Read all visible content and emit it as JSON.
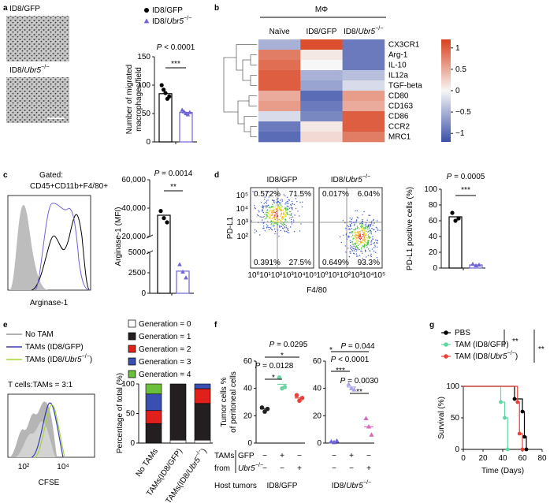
{
  "panel_labels": [
    "a",
    "b",
    "c",
    "d",
    "e",
    "f",
    "g"
  ],
  "images": {
    "labels": [
      "ID8/GFP",
      "ID8/Ubr5−/−"
    ]
  },
  "flow_c": {
    "gate_title": "Gated:",
    "gate": "CD45+CD11b+F4/80+",
    "x_label": "Arginase-1"
  },
  "flow_d": {
    "titles": [
      "ID8/GFP",
      "ID8/Ubr5−/−"
    ],
    "quadrants": [
      [
        "0.572%",
        "71.5%",
        "0.391%",
        "27.5%"
      ],
      [
        "0.017%",
        "6.04%",
        "0.649%",
        "93.3%"
      ]
    ],
    "y_label": "PD-L1",
    "x_label": "F4/80",
    "x_tick_labels": [
      "10⁰",
      "10¹",
      "10²",
      "10³",
      "10⁴",
      "10⁵"
    ],
    "y_tick_labels": [
      "10²",
      "10³",
      "10⁴",
      "10⁵"
    ]
  },
  "histogram_e": {
    "legend": [
      "No TAM",
      "TAMs (ID8/GFP)",
      "TAMs (ID8/Ubr5−/−)"
    ],
    "ratio": "T cells:TAMs = 3:1",
    "x_label": "CFSE",
    "x_tick_labels": [
      "10²",
      "10⁴"
    ]
  },
  "chart_data": [
    {
      "type": "bar",
      "categories": [
        "ID8/GFP",
        "ID8/Ubr5−/−"
      ],
      "colors": [
        "#000000",
        "#6f63d8"
      ],
      "markers": [
        "circle",
        "triangle"
      ],
      "values": [
        85,
        52
      ],
      "points": [
        [
          100,
          92,
          86,
          76,
          80
        ],
        [
          56,
          53,
          50,
          48,
          52
        ]
      ],
      "ylim": [
        0,
        150
      ],
      "yticks": [
        0,
        50,
        100,
        150
      ],
      "y_label": [
        "Number of migrated",
        "macrophages/field"
      ],
      "annotations": [
        "P < 0.0001",
        "***"
      ]
    },
    {
      "type": "heatmap",
      "title": "MΦ",
      "columns": [
        "Naïve",
        "ID8/GFP",
        "ID8/Ubr5−/−"
      ],
      "rows": [
        "CX3CR1",
        "Arg-1",
        "IL-10",
        "IL12a",
        "TGF-beta",
        "CD80",
        "CD163",
        "CD86",
        "CCR2",
        "MRC1"
      ],
      "values": [
        [
          -0.5,
          1.1,
          -0.9
        ],
        [
          0.8,
          0.1,
          -0.9
        ],
        [
          0.9,
          0.0,
          -0.9
        ],
        [
          1.0,
          -0.5,
          -0.4
        ],
        [
          1.0,
          -0.6,
          -0.2
        ],
        [
          0.5,
          -1.0,
          0.6
        ],
        [
          0.6,
          -0.9,
          0.5
        ],
        [
          -0.2,
          -0.8,
          1.0
        ],
        [
          -0.9,
          0.1,
          1.0
        ],
        [
          -1.0,
          0.2,
          0.8
        ]
      ],
      "zlim": [
        -1.2,
        1.2
      ],
      "zticks": [
        1,
        0.5,
        0,
        {
          "value": -0.5,
          "label": "−0.5"
        },
        {
          "value": -1,
          "label": "−1"
        }
      ],
      "colors": [
        "#3b50a8",
        "#f7f7f7",
        "#d8401c"
      ]
    },
    {
      "type": "bar",
      "colors": [
        "#000000",
        "#6f63d8"
      ],
      "markers": [
        "circle",
        "triangle"
      ],
      "values": [
        35000,
        2700
      ],
      "points": [
        [
          38000,
          33000,
          30000
        ],
        [
          3500,
          2600,
          1900
        ]
      ],
      "ylim": [
        0,
        60000
      ],
      "ybreak": [
        5000,
        20000
      ],
      "yticks": [
        0,
        2500,
        5000,
        {
          "value": 20000,
          "label": "20,000"
        },
        {
          "value": 40000,
          "label": "40,000"
        },
        {
          "value": 60000,
          "label": "60,000"
        }
      ],
      "y_label": [
        "Arginase-1 (MFI)"
      ],
      "annotations": [
        "P = 0.0014",
        "**"
      ]
    },
    {
      "type": "bar",
      "colors": [
        "#000000",
        "#6f63d8"
      ],
      "markers": [
        "circle",
        "triangle"
      ],
      "values": [
        65,
        4
      ],
      "points": [
        [
          70,
          60,
          63
        ],
        [
          5,
          3,
          4
        ]
      ],
      "ylim": [
        0,
        100
      ],
      "yticks": [
        0,
        20,
        40,
        60,
        80,
        100
      ],
      "y_label": [
        "PD-L1 positive cells (%)"
      ],
      "annotations": [
        "P = 0.0005",
        "***"
      ]
    },
    {
      "type": "stacked_bar",
      "categories": [
        "No TAMs",
        "TAMs(ID8/GFP)",
        "TAMs(ID8/Ubr5−/−)"
      ],
      "series": [
        {
          "name": "Generation = 0",
          "color": "#ffffff",
          "values": [
            0,
            5,
            5
          ]
        },
        {
          "name": "Generation = 1",
          "color": "#231f20",
          "values": [
            33,
            95,
            62
          ]
        },
        {
          "name": "Generation = 2",
          "color": "#e0201b",
          "values": [
            22,
            0,
            25
          ]
        },
        {
          "name": "Generation = 3",
          "color": "#3a4fb2",
          "values": [
            28,
            0,
            8
          ]
        },
        {
          "name": "Generation = 4",
          "color": "#6cbf3a",
          "values": [
            17,
            0,
            0
          ]
        }
      ],
      "ylim": [
        0,
        100
      ],
      "yticks": [
        0,
        50,
        100
      ],
      "y_label": [
        "Percentage of total (%)"
      ]
    },
    {
      "type": "dot",
      "ylim": [
        0,
        60
      ],
      "yticks": [
        0,
        20,
        40,
        60
      ],
      "y_label": [
        "Tumor cells %",
        "of peritoneal cells"
      ],
      "row_title": [
        "TAMs",
        "from"
      ],
      "row_labels": [
        "GFP",
        "Ubr5−/−"
      ],
      "host_label": "Host tumors",
      "groups": [
        {
          "name": "ID8/GFP",
          "signs": [
            [
              "−",
              "+",
              "−"
            ],
            [
              "−",
              "−",
              "+"
            ]
          ],
          "series": [
            {
              "color": "#222222",
              "marker": "circle",
              "mean": 25,
              "values": [
                26,
                23,
                25
              ]
            },
            {
              "color": "#6ed3a6",
              "marker": "circle",
              "mean": 43,
              "values": [
                48,
                40,
                41
              ]
            },
            {
              "color": "#e8413a",
              "marker": "circle",
              "mean": 33,
              "values": [
                35,
                31,
                33
              ]
            }
          ],
          "annotations": [
            "P = 0.0295",
            "*",
            "P = 0.0128",
            "*"
          ]
        },
        {
          "name": "ID8/Ubr5−/−",
          "signs": [
            [
              "−",
              "+",
              "−"
            ],
            [
              "−",
              "−",
              "+"
            ]
          ],
          "series": [
            {
              "color": "#6f63d8",
              "marker": "triangle",
              "mean": 1,
              "values": [
                1,
                0.5,
                1.5
              ]
            },
            {
              "color": "#a9a2ea",
              "marker": "triangle",
              "mean": 41,
              "values": [
                43,
                40,
                39
              ]
            },
            {
              "color": "#d86ab8",
              "marker": "triangle",
              "mean": 12,
              "values": [
                18,
                12,
                6
              ]
            }
          ],
          "annotations": [
            "*",
            "P = 0.044",
            "P < 0.0001",
            "***",
            "P = 0.0030",
            "**"
          ]
        }
      ]
    },
    {
      "type": "survival",
      "xlim": [
        0,
        80
      ],
      "xticks": [
        0,
        20,
        40,
        60,
        80
      ],
      "ylim": [
        0,
        100
      ],
      "yticks": [
        0,
        50,
        100
      ],
      "x_label": "Time (Days)",
      "y_label": "Survival (%)",
      "series": [
        {
          "name": "PBS",
          "color": "#000000",
          "x": [
            0,
            52,
            60,
            62,
            64
          ],
          "values": [
            100,
            80,
            60,
            20,
            0
          ]
        },
        {
          "name": "TAM (ID8/GFP)",
          "color": "#5fd6a4",
          "x": [
            0,
            38,
            42,
            45
          ],
          "values": [
            100,
            75,
            50,
            0
          ]
        },
        {
          "name": "TAM (ID8/Ubr5−/−)",
          "color": "#e8413a",
          "x": [
            0,
            55,
            57,
            60
          ],
          "values": [
            100,
            75,
            25,
            0
          ]
        }
      ],
      "annotations": [
        "**",
        "**"
      ]
    }
  ]
}
